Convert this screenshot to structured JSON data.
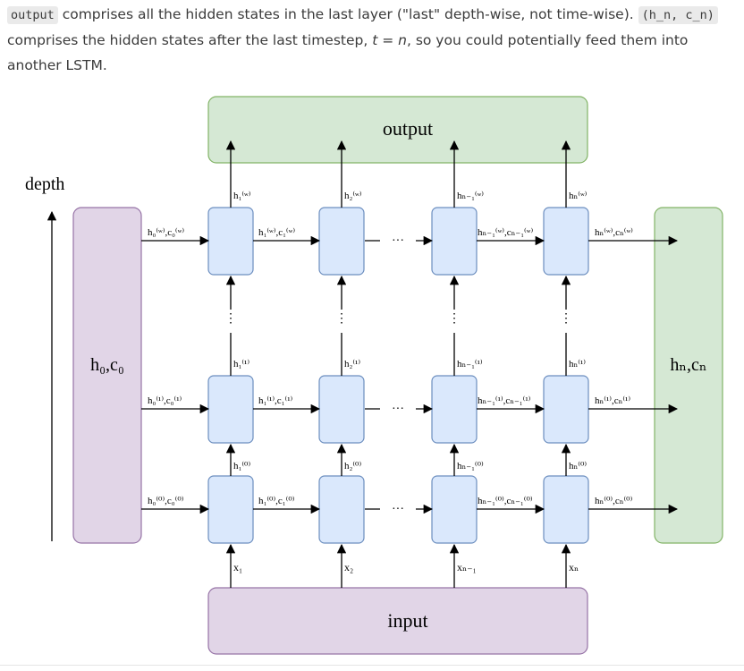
{
  "paragraph": {
    "code1": "output",
    "text1": " comprises all the hidden states in the last layer (\"last\" depth-wise, not time-wise). ",
    "code2": "(h_n, c_n)",
    "text2": " comprises the hidden states after the last timestep, ",
    "t_var": "t",
    "equals": " = ",
    "n_var": "n",
    "text3": ", so you could potentially feed them into another LSTM."
  },
  "diagram": {
    "output_label": "output",
    "input_label": "input",
    "depth_label": "depth",
    "initial_state_label": "h₀,c₀",
    "final_state_label": "hₙ,cₙ",
    "ellipsis": "···",
    "vertical_ellipsis": "⋮",
    "inputs": [
      "x₁",
      "x₂",
      "xₙ₋₁",
      "xₙ"
    ],
    "layers": [
      {
        "name": "top",
        "outputs": [
          "h₁⁽ʷ⁾",
          "h₂⁽ʷ⁾",
          "hₙ₋₁⁽ʷ⁾",
          "hₙ⁽ʷ⁾"
        ],
        "transitions": [
          "h₀⁽ʷ⁾,c₀⁽ʷ⁾",
          "h₁⁽ʷ⁾,c₁⁽ʷ⁾",
          "hₙ₋₁⁽ʷ⁾,cₙ₋₁⁽ʷ⁾",
          "hₙ⁽ʷ⁾,cₙ⁽ʷ⁾"
        ]
      },
      {
        "name": "middle",
        "outputs": [
          "h₁⁽¹⁾",
          "h₂⁽¹⁾",
          "hₙ₋₁⁽¹⁾",
          "hₙ⁽¹⁾"
        ],
        "transitions": [
          "h₀⁽¹⁾,c₀⁽¹⁾",
          "h₁⁽¹⁾,c₁⁽¹⁾",
          "hₙ₋₁⁽¹⁾,cₙ₋₁⁽¹⁾",
          "hₙ⁽¹⁾,cₙ⁽¹⁾"
        ]
      },
      {
        "name": "bottom",
        "outputs": [
          "h₁⁽⁰⁾",
          "h₂⁽⁰⁾",
          "hₙ₋₁⁽⁰⁾",
          "hₙ⁽⁰⁾"
        ],
        "transitions": [
          "h₀⁽⁰⁾,c₀⁽⁰⁾",
          "h₁⁽⁰⁾,c₁⁽⁰⁾",
          "hₙ₋₁⁽⁰⁾,cₙ₋₁⁽⁰⁾",
          "hₙ⁽⁰⁾,cₙ⁽⁰⁾"
        ]
      }
    ],
    "colors": {
      "output_fill": "#d5e8d4",
      "output_stroke": "#82b366",
      "input_fill": "#e1d5e7",
      "input_stroke": "#9673a6",
      "cell_fill": "#dae8fc",
      "cell_stroke": "#6c8ebf"
    }
  }
}
